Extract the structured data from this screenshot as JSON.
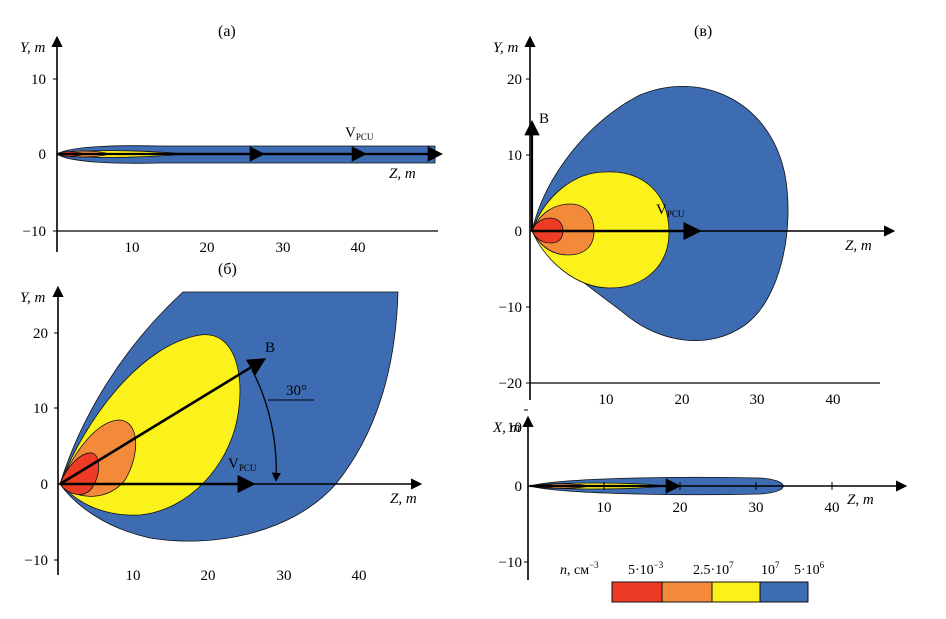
{
  "colors": {
    "red": "#ed3b25",
    "orange": "#f28a3a",
    "yellow": "#fbf21c",
    "blue": "#3d6cb3",
    "outline": "#111111"
  },
  "panels": {
    "a": {
      "label": "(a)",
      "y_axis": "Y, m",
      "x_axis": "Z, m",
      "y_ticks": [
        "10",
        "0",
        "−10"
      ],
      "x_ticks": [
        "10",
        "20",
        "30",
        "40"
      ],
      "v_main": "V",
      "v_sub": "PCU"
    },
    "v": {
      "label": "(в)",
      "y_axis": "Y, m",
      "x_axis": "Z, m",
      "y_ticks": [
        "20",
        "10",
        "0",
        "−10",
        "−20"
      ],
      "x_ticks": [
        "10",
        "20",
        "30",
        "40"
      ],
      "b_label": "B",
      "v_main": "V",
      "v_sub": "PCU"
    },
    "b": {
      "label": "(б)",
      "y_axis": "Y, m",
      "x_axis": "Z, m",
      "y_ticks": [
        "20",
        "10",
        "0",
        "−10"
      ],
      "x_ticks": [
        "10",
        "20",
        "30",
        "40"
      ],
      "b_label": "B",
      "angle": "30°",
      "v_main": "V",
      "v_sub": "PCU"
    },
    "x": {
      "y_axis": "X, m",
      "x_axis": "Z, m",
      "y_ticks": [
        "10",
        "0",
        "−10"
      ],
      "x_ticks": [
        "10",
        "20",
        "30",
        "40"
      ]
    }
  },
  "legend": {
    "title_n": "n",
    "title_unit": ", см",
    "title_exp": "−3",
    "values": [
      {
        "mant": "5·10",
        "exp": "−3",
        "color": "red"
      },
      {
        "mant": "2.5·10",
        "exp": "7",
        "color": "orange"
      },
      {
        "mant": "10",
        "exp": "7",
        "color": "yellow"
      },
      {
        "mant": "5·10",
        "exp": "6",
        "color": "blue"
      }
    ]
  }
}
